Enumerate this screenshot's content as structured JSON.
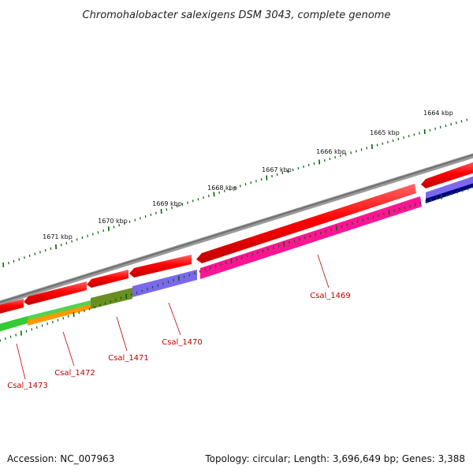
{
  "header": {
    "title": "Chromohalobacter salexigens DSM 3043, complete genome"
  },
  "footer": {
    "accession": "Accession: NC_007963",
    "summary": "Topology: circular; Length: 3,696,649 bp; Genes: 3,388"
  },
  "ruler": {
    "labels": [
      "1664 kbp",
      "1665 kbp",
      "1666 kbp",
      "1667 kbp",
      "1668 kbp",
      "1669 kbp",
      "1670 kbp",
      "1671 kbp"
    ]
  },
  "genes": {
    "labels": [
      "Csal_1469",
      "Csal_1470",
      "Csal_1471",
      "Csal_1472",
      "Csal_1473"
    ]
  },
  "colors": {
    "backbone": "#808080",
    "cds": "#ff0000",
    "csal_1469": "#ff1493",
    "csal_1470": "#7b68ee",
    "csal_1471": "#6b8e23",
    "csal_1472": "#ff9900",
    "csal_1473": "#33cc33",
    "navy": "#000080",
    "ticks": "#006400",
    "gene_label": "#c00000"
  }
}
